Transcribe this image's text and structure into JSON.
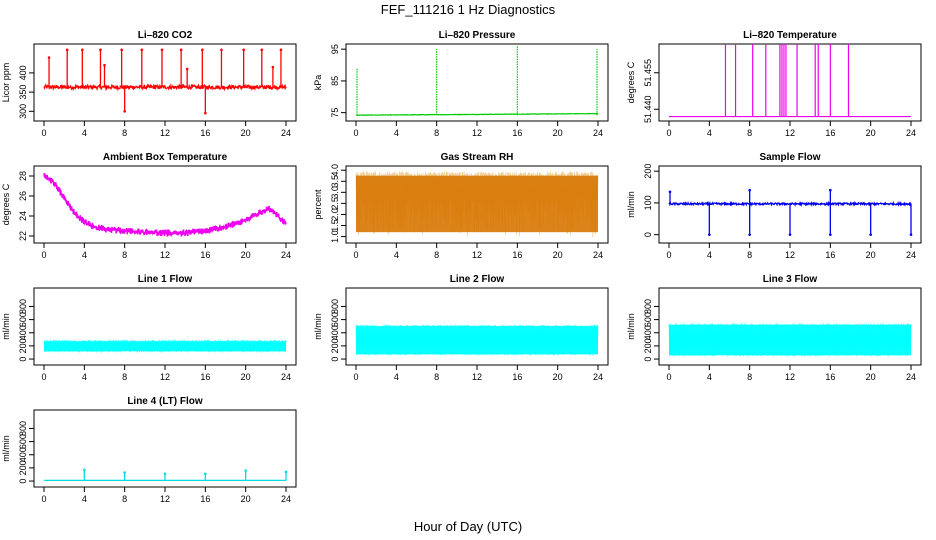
{
  "figure": {
    "title": "FEF_111216  1 Hz Diagnostics",
    "xlabel": "Hour of Day (UTC)"
  },
  "chart_data": [
    {
      "type": "line",
      "title": "Li–820 CO2",
      "ylabel": "Licor ppm",
      "color": "#ff0000",
      "xlim": [
        0,
        24
      ],
      "ylim": [
        280,
        470
      ],
      "xticks": [
        0,
        4,
        8,
        12,
        16,
        20,
        24
      ],
      "yticks": [
        300,
        350,
        400
      ],
      "series": [
        {
          "baseline": 363,
          "noise": 5,
          "spikes": [
            [
              2.3,
              460
            ],
            [
              3.8,
              460
            ],
            [
              5.6,
              460
            ],
            [
              7.7,
              460
            ],
            [
              8.0,
              300
            ],
            [
              9.7,
              460
            ],
            [
              11.7,
              460
            ],
            [
              13.6,
              460
            ],
            [
              15.7,
              460
            ],
            [
              16.0,
              295
            ],
            [
              17.6,
              460
            ],
            [
              19.8,
              460
            ],
            [
              21.6,
              460
            ],
            [
              23.5,
              460
            ],
            [
              0.5,
              440
            ],
            [
              6.0,
              420
            ],
            [
              14.2,
              410
            ],
            [
              22.7,
              415
            ]
          ]
        }
      ]
    },
    {
      "type": "line",
      "title": "Li–820 Pressure",
      "ylabel": "kPa",
      "color": "#00cc00",
      "xlim": [
        0,
        24
      ],
      "ylim": [
        73,
        96
      ],
      "xticks": [
        0,
        4,
        8,
        12,
        16,
        20,
        24
      ],
      "yticks": [
        75,
        85,
        95
      ],
      "series": [
        {
          "baseline_start": 74.2,
          "baseline_end": 74.7,
          "noise": 0.15,
          "spikes": [
            [
              0.1,
              89
            ],
            [
              8.0,
              95
            ],
            [
              16.0,
              96
            ],
            [
              23.9,
              95
            ]
          ]
        }
      ]
    },
    {
      "type": "line",
      "title": "Li–820 Temperature",
      "ylabel": "degrees C",
      "color": "#ee00ee",
      "xlim": [
        0,
        24
      ],
      "ylim": [
        51.436,
        51.466
      ],
      "xticks": [
        0,
        4,
        8,
        12,
        16,
        20,
        24
      ],
      "yticks": [
        51.44,
        51.455
      ],
      "ytick_labels": [
        "51.440",
        "51.455"
      ],
      "series": [
        {
          "baseline": 51.437,
          "spikes": [
            5.6,
            6.6,
            8.3,
            9.6,
            11.0,
            11.2,
            11.4,
            11.6,
            12.7,
            14.5,
            14.8,
            16.0,
            17.8
          ]
        }
      ]
    },
    {
      "type": "line",
      "title": "Ambient Box Temperature",
      "ylabel": "degrees C",
      "color": "#ee00ee",
      "xlim": [
        0,
        24
      ],
      "ylim": [
        21.5,
        28.8
      ],
      "xticks": [
        0,
        4,
        8,
        12,
        16,
        20,
        24
      ],
      "yticks": [
        22,
        24,
        26,
        28
      ],
      "series": [
        {
          "x": [
            0,
            1,
            2,
            3,
            4,
            5,
            6,
            8,
            10,
            12,
            14,
            16,
            18,
            20,
            21,
            22,
            22.5,
            23,
            24
          ],
          "y": [
            28.2,
            27.3,
            25.8,
            24.3,
            23.4,
            22.9,
            22.7,
            22.5,
            22.4,
            22.3,
            22.3,
            22.5,
            22.9,
            23.6,
            24.1,
            24.6,
            24.7,
            24.2,
            23.2
          ],
          "noise": 0.35
        }
      ]
    },
    {
      "type": "line",
      "title": "Gas Stream RH",
      "ylabel": "percent",
      "color": "#e08a00",
      "xlim": [
        0,
        24
      ],
      "ylim": [
        0.8,
        4.1
      ],
      "xticks": [
        0,
        4,
        8,
        12,
        16,
        20,
        24
      ],
      "yticks": [
        1.0,
        1.5,
        2.0,
        2.5,
        3.0,
        3.5,
        4.0
      ],
      "ytick_labels": [
        "1.0",
        "1.5",
        "2.0",
        "2.5",
        "3.0",
        "3.5",
        "4.0"
      ],
      "series": [
        {
          "upper": 3.75,
          "lower": 1.2,
          "min": 0.95,
          "max": 3.95
        }
      ]
    },
    {
      "type": "line",
      "title": "Sample Flow",
      "ylabel": "ml/min",
      "color": "#0000ee",
      "xlim": [
        0,
        24
      ],
      "ylim": [
        -20,
        210
      ],
      "xticks": [
        0,
        4,
        8,
        12,
        16,
        20,
        24
      ],
      "yticks": [
        0,
        100,
        200
      ],
      "series": [
        {
          "baseline": 97,
          "noise": 3,
          "spikes": [
            [
              0.1,
              135
            ],
            [
              8.0,
              140
            ],
            [
              16.0,
              140
            ],
            [
              4.0,
              0
            ],
            [
              8.0,
              0
            ],
            [
              12.0,
              0
            ],
            [
              16.0,
              0
            ],
            [
              20.0,
              0
            ],
            [
              24.0,
              0
            ]
          ]
        }
      ]
    },
    {
      "type": "line",
      "title": "Line 1 Flow",
      "ylabel": "ml/min",
      "color": "#00ffff",
      "xlim": [
        0,
        24
      ],
      "ylim": [
        -60,
        1050
      ],
      "xticks": [
        0,
        4,
        8,
        12,
        16,
        20,
        24
      ],
      "yticks": [
        0,
        200,
        400,
        600,
        800
      ],
      "series": [
        {
          "upper": 270,
          "lower": 120
        }
      ]
    },
    {
      "type": "line",
      "title": "Line 2 Flow",
      "ylabel": "ml/min",
      "color": "#00ffff",
      "xlim": [
        0,
        24
      ],
      "ylim": [
        -60,
        1050
      ],
      "xticks": [
        0,
        4,
        8,
        12,
        16,
        20,
        24
      ],
      "yticks": [
        0,
        200,
        400,
        600,
        800
      ],
      "series": [
        {
          "upper": 500,
          "lower": 75
        }
      ]
    },
    {
      "type": "line",
      "title": "Line 3 Flow",
      "ylabel": "ml/min",
      "color": "#00ffff",
      "xlim": [
        0,
        24
      ],
      "ylim": [
        -60,
        1050
      ],
      "xticks": [
        0,
        4,
        8,
        12,
        16,
        20,
        24
      ],
      "yticks": [
        0,
        200,
        400,
        600,
        800
      ],
      "series": [
        {
          "upper": 520,
          "lower": 60
        }
      ]
    },
    {
      "type": "line",
      "title": "Line 4 (LT) Flow",
      "ylabel": "ml/min",
      "color": "#00dddd",
      "xlim": [
        0,
        24
      ],
      "ylim": [
        -60,
        1050
      ],
      "xticks": [
        0,
        4,
        8,
        12,
        16,
        20,
        24
      ],
      "yticks": [
        0,
        200,
        400,
        600,
        800
      ],
      "series": [
        {
          "baseline": 10,
          "spikes": [
            [
              4.0,
              170
            ],
            [
              8.0,
              130
            ],
            [
              12.0,
              110
            ],
            [
              16.0,
              110
            ],
            [
              20.0,
              160
            ],
            [
              24.0,
              140
            ]
          ]
        }
      ]
    }
  ]
}
